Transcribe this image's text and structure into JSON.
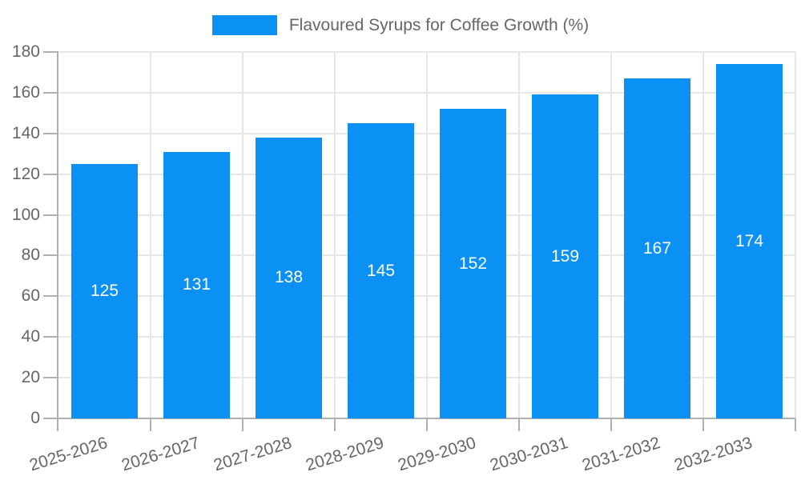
{
  "legend": {
    "series_label": "Flavoured Syrups for Coffee Growth (%)"
  },
  "chart_data": {
    "type": "bar",
    "title": "Flavoured Syrups for Coffee Growth (%)",
    "categories": [
      "2025-2026",
      "2026-2027",
      "2027-2028",
      "2028-2029",
      "2029-2030",
      "2030-2031",
      "2031-2032",
      "2032-2033"
    ],
    "values": [
      125,
      131,
      138,
      145,
      152,
      159,
      167,
      174
    ],
    "xlabel": "",
    "ylabel": "",
    "ylim": [
      0,
      180
    ],
    "yticks": [
      0,
      20,
      40,
      60,
      80,
      100,
      120,
      140,
      160,
      180
    ],
    "grid": true,
    "legend_position": "top-center",
    "bar_label_position": "middle-of-bar",
    "x_label_rotation_deg": -17,
    "colors": {
      "bar": "#0b91f3",
      "bar_label": "#ffffff",
      "grid": "#e7e7e7",
      "axis": "#b0b0b0",
      "tick_text": "#666666",
      "legend_text": "#666666",
      "background": "#ffffff"
    }
  }
}
